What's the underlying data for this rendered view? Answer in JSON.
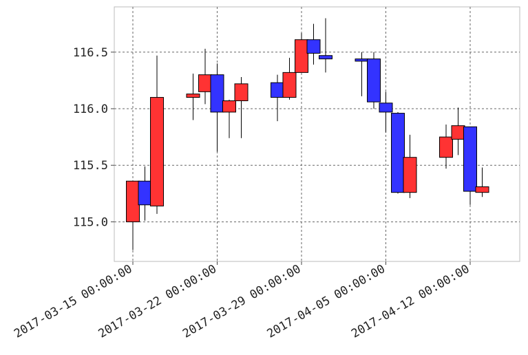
{
  "chart_data": {
    "type": "candlestick",
    "title": "",
    "xlabel": "",
    "ylabel": "",
    "ylim": [
      114.65,
      116.9
    ],
    "grid": true,
    "colors": {
      "up": "#ff3333",
      "down": "#3333ff",
      "edge": "#000000"
    },
    "x_ticks": [
      "2017-03-15 00:00:00",
      "2017-03-22 00:00:00",
      "2017-03-29 00:00:00",
      "2017-04-05 00:00:00",
      "2017-04-12 00:00:00"
    ],
    "y_ticks": [
      "115.0",
      "115.5",
      "116.0",
      "116.5"
    ],
    "x_start": "2017-03-14",
    "x_end": "2017-04-17",
    "candles": [
      {
        "date": "2017-03-15",
        "open": 115.0,
        "high": 115.36,
        "low": 114.75,
        "close": 115.36
      },
      {
        "date": "2017-03-16",
        "open": 115.36,
        "high": 115.49,
        "low": 115.01,
        "close": 115.15
      },
      {
        "date": "2017-03-17",
        "open": 115.14,
        "high": 116.47,
        "low": 115.07,
        "close": 116.1
      },
      {
        "date": "2017-03-20",
        "open": 116.1,
        "high": 116.31,
        "low": 115.9,
        "close": 116.13
      },
      {
        "date": "2017-03-21",
        "open": 116.15,
        "high": 116.53,
        "low": 116.04,
        "close": 116.3
      },
      {
        "date": "2017-03-22",
        "open": 116.3,
        "high": 116.4,
        "low": 115.62,
        "close": 115.97
      },
      {
        "date": "2017-03-23",
        "open": 115.97,
        "high": 116.08,
        "low": 115.74,
        "close": 116.07
      },
      {
        "date": "2017-03-24",
        "open": 116.07,
        "high": 116.28,
        "low": 115.74,
        "close": 116.22
      },
      {
        "date": "2017-03-27",
        "open": 116.23,
        "high": 116.3,
        "low": 115.89,
        "close": 116.1
      },
      {
        "date": "2017-03-28",
        "open": 116.1,
        "high": 116.45,
        "low": 116.08,
        "close": 116.32
      },
      {
        "date": "2017-03-29",
        "open": 116.32,
        "high": 116.67,
        "low": 116.32,
        "close": 116.61
      },
      {
        "date": "2017-03-30",
        "open": 116.61,
        "high": 116.75,
        "low": 116.39,
        "close": 116.49
      },
      {
        "date": "2017-03-31",
        "open": 116.47,
        "high": 116.8,
        "low": 116.32,
        "close": 116.44
      },
      {
        "date": "2017-04-03",
        "open": 116.44,
        "high": 116.5,
        "low": 116.11,
        "close": 116.42
      },
      {
        "date": "2017-04-04",
        "open": 116.44,
        "high": 116.5,
        "low": 116.0,
        "close": 116.06
      },
      {
        "date": "2017-04-05",
        "open": 116.05,
        "high": 116.15,
        "low": 115.79,
        "close": 115.97
      },
      {
        "date": "2017-04-06",
        "open": 115.96,
        "high": 115.97,
        "low": 115.25,
        "close": 115.26
      },
      {
        "date": "2017-04-07",
        "open": 115.26,
        "high": 115.77,
        "low": 115.21,
        "close": 115.57
      },
      {
        "date": "2017-04-10",
        "open": 115.57,
        "high": 115.86,
        "low": 115.47,
        "close": 115.75
      },
      {
        "date": "2017-04-11",
        "open": 115.73,
        "high": 116.01,
        "low": 115.59,
        "close": 115.85
      },
      {
        "date": "2017-04-12",
        "open": 115.84,
        "high": 115.84,
        "low": 115.15,
        "close": 115.27
      },
      {
        "date": "2017-04-13",
        "open": 115.26,
        "high": 115.48,
        "low": 115.22,
        "close": 115.31
      }
    ]
  }
}
